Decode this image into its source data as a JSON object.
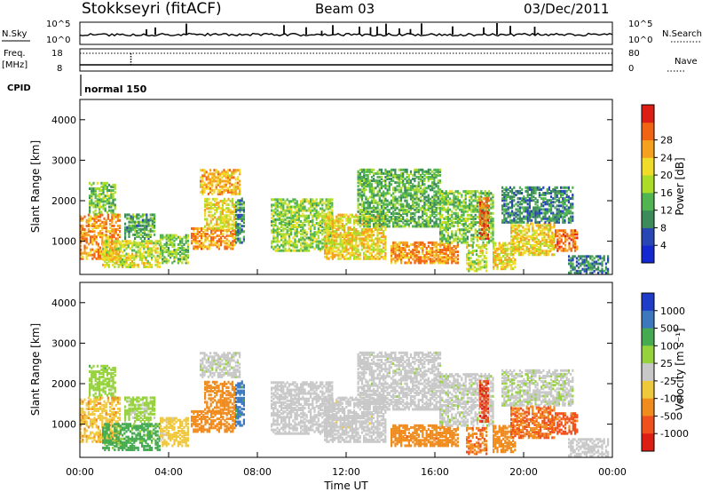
{
  "chart_data": {
    "type": "heatmap",
    "header": {
      "station": "Stokkseyri (fitACF)",
      "beam": "Beam 03",
      "date": "03/Dec/2011",
      "cpid_value": "normal 150"
    },
    "strip_labels": {
      "nsky": "N.Sky",
      "nsearch": "N.Search",
      "freq": "Freq.",
      "mhz": "[MHz]",
      "nave": "Nave",
      "cpid": "CPID"
    },
    "strip_ticks": {
      "nsky": [
        "10^5",
        "10^0"
      ],
      "nsearch": [
        "10^5",
        "10^0"
      ],
      "freq": [
        "18",
        "8"
      ],
      "nave": [
        "80",
        "0"
      ]
    },
    "x_axis": {
      "label": "Time UT",
      "ticks": [
        "00:00",
        "04:00",
        "08:00",
        "12:00",
        "16:00",
        "20:00",
        "00:00"
      ],
      "range_hours": [
        0,
        24
      ]
    },
    "y_axis": {
      "label": "Slant Range [km]",
      "ticks": [
        1000,
        2000,
        3000,
        4000
      ],
      "range_km": [
        180,
        4500
      ]
    },
    "panels": [
      {
        "name": "power",
        "colorbar_label": "Power [dB]",
        "colorbar_ticks": [
          "4",
          "8",
          "12",
          "16",
          "20",
          "24",
          "28"
        ],
        "colors": [
          "#1428d2",
          "#2846b4",
          "#3c8c5a",
          "#50b450",
          "#aadc28",
          "#f0dc28",
          "#f5a01e",
          "#f06414",
          "#dc1e14"
        ],
        "range_db": [
          0,
          32
        ]
      },
      {
        "name": "velocity",
        "colorbar_label": "Velocity [m s⁻¹]",
        "colorbar_ticks": [
          "1000",
          "500",
          "100",
          "25",
          "-25",
          "-100",
          "-500",
          "-1000"
        ],
        "colors": [
          "#1e3cc8",
          "#3c78be",
          "#46aa50",
          "#96d23c",
          "#c8c8c8",
          "#f0c83c",
          "#f08c1e",
          "#f0501e",
          "#dc1e14"
        ],
        "range_ms": [
          -1000,
          1000
        ]
      }
    ],
    "echo_regions": [
      {
        "t0": 0.0,
        "t1": 1.8,
        "r0": 600,
        "r1": 1700,
        "p": 24,
        "v": -80
      },
      {
        "t0": 0.4,
        "t1": 1.6,
        "r0": 1700,
        "r1": 2500,
        "p": 14,
        "v": 60
      },
      {
        "t0": 1.0,
        "t1": 3.6,
        "r0": 400,
        "r1": 1050,
        "p": 18,
        "v": 150
      },
      {
        "t0": 2.0,
        "t1": 3.4,
        "r0": 1100,
        "r1": 1700,
        "p": 11,
        "v": 40
      },
      {
        "t0": 3.6,
        "t1": 4.9,
        "r0": 500,
        "r1": 1200,
        "p": 14,
        "v": -60
      },
      {
        "t0": 5.0,
        "t1": 7.0,
        "r0": 850,
        "r1": 1350,
        "p": 24,
        "v": -200
      },
      {
        "t0": 5.6,
        "t1": 7.0,
        "r0": 1350,
        "r1": 2100,
        "p": 19,
        "v": -300
      },
      {
        "t0": 5.4,
        "t1": 7.2,
        "r0": 2200,
        "r1": 2800,
        "p": 22,
        "v": 10
      },
      {
        "t0": 7.0,
        "t1": 7.4,
        "r0": 1000,
        "r1": 2100,
        "p": 10,
        "v": 700
      },
      {
        "t0": 8.6,
        "t1": 11.4,
        "r0": 800,
        "r1": 2100,
        "p": 15,
        "v": 0
      },
      {
        "t0": 11.0,
        "t1": 13.8,
        "r0": 600,
        "r1": 1700,
        "p": 20,
        "v": -5
      },
      {
        "t0": 12.5,
        "t1": 16.2,
        "r0": 1400,
        "r1": 2800,
        "p": 12,
        "v": 5
      },
      {
        "t0": 14.0,
        "t1": 17.0,
        "r0": 500,
        "r1": 1000,
        "p": 24,
        "v": -350
      },
      {
        "t0": 16.2,
        "t1": 18.6,
        "r0": 1000,
        "r1": 2300,
        "p": 14,
        "v": 10
      },
      {
        "t0": 17.4,
        "t1": 18.3,
        "r0": 300,
        "r1": 950,
        "p": 18,
        "v": -500
      },
      {
        "t0": 18.6,
        "t1": 19.6,
        "r0": 350,
        "r1": 1000,
        "p": 20,
        "v": -300
      },
      {
        "t0": 18.0,
        "t1": 18.4,
        "r0": 1100,
        "r1": 2100,
        "p": 26,
        "v": -900
      },
      {
        "t0": 19.4,
        "t1": 21.4,
        "r0": 700,
        "r1": 1500,
        "p": 20,
        "v": -500
      },
      {
        "t0": 19.0,
        "t1": 22.2,
        "r0": 1500,
        "r1": 2400,
        "p": 9,
        "v": 15
      },
      {
        "t0": 21.4,
        "t1": 22.4,
        "r0": 800,
        "r1": 1300,
        "p": 26,
        "v": -700
      },
      {
        "t0": 22.0,
        "t1": 23.8,
        "r0": 250,
        "r1": 700,
        "p": 9,
        "v": 0
      }
    ],
    "nsky_spikes": [
      3.0,
      3.4,
      4.8,
      9.2,
      10.2,
      10.9,
      11.4,
      12.6,
      13.1,
      13.4,
      13.8,
      14.4,
      14.9,
      15.4,
      16.8,
      18.2,
      18.8,
      19.4,
      20.5
    ],
    "freq_mark_time": 2.3
  }
}
